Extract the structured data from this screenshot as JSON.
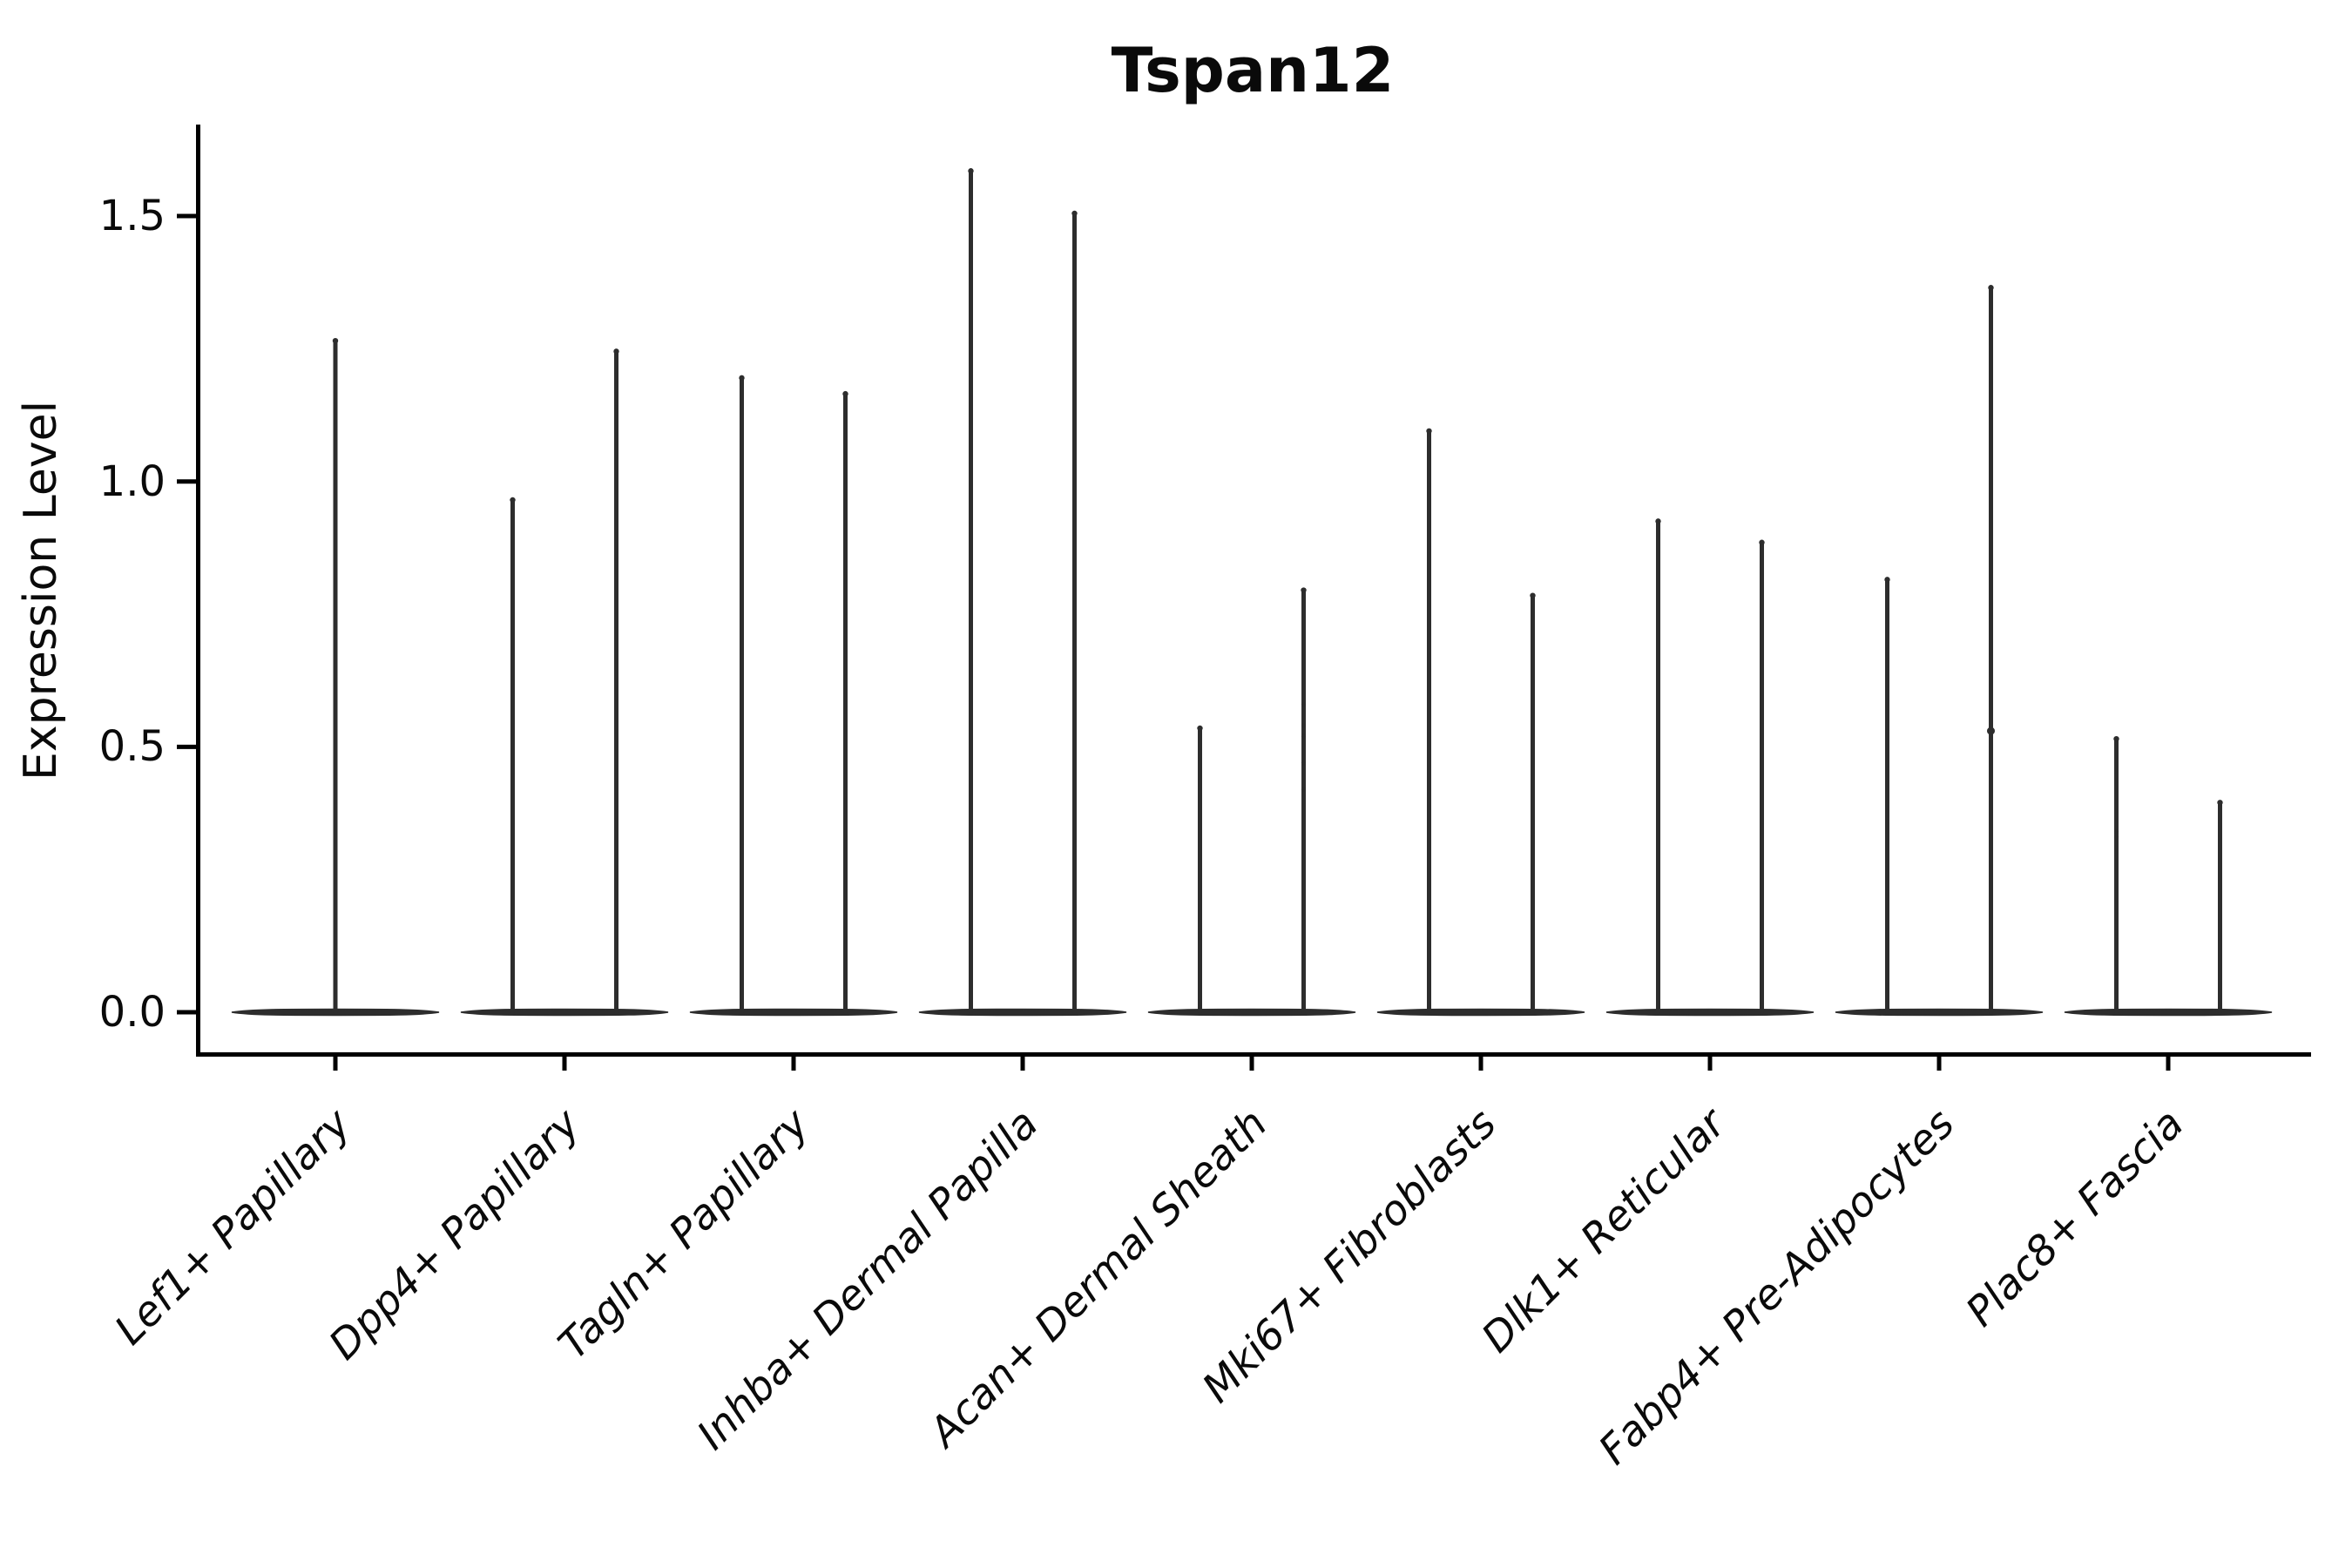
{
  "chart_data": {
    "type": "violin",
    "title": "Tspan12",
    "xlabel": "",
    "ylabel": "Expression Level",
    "ytick_labels": [
      "0.0",
      "0.5",
      "1.0",
      "1.5"
    ],
    "ytick_values": [
      0.0,
      0.5,
      1.0,
      1.5
    ],
    "ylim": [
      -0.08,
      1.67
    ],
    "grid": false,
    "legend": "none",
    "x_label_rotation_deg": 45,
    "x_label_style": "italic",
    "violin_color": "#2d2d2d",
    "axis_color": "#000000",
    "groups_per_category": 2,
    "categories": [
      "Lef1+ Papillary",
      "Dpp4+ Papillary",
      "Tagln+ Papillary",
      "Inhba+ Dermal Papilla",
      "Acan+ Dermal Sheath",
      "Mki67+ Fibroblasts",
      "Dlk1+ Reticular",
      "Fabp4+ Pre-Adipocytes",
      "Plac8+ Fascia"
    ],
    "violins": [
      {
        "category": "Lef1+ Papillary",
        "maxima": [
          1.27
        ]
      },
      {
        "category": "Dpp4+ Papillary",
        "maxima": [
          0.97,
          1.25
        ]
      },
      {
        "category": "Tagln+ Papillary",
        "maxima": [
          1.2,
          1.17
        ]
      },
      {
        "category": "Inhba+ Dermal Papilla",
        "maxima": [
          1.59,
          1.51
        ]
      },
      {
        "category": "Acan+ Dermal Sheath",
        "maxima": [
          0.54,
          0.8
        ],
        "points": [
          [],
          [
            0.58,
            0.54,
            0.52,
            0.47,
            0.42
          ]
        ]
      },
      {
        "category": "Mki67+ Fibroblasts",
        "maxima": [
          1.1,
          0.79
        ]
      },
      {
        "category": "Dlk1+ Reticular",
        "maxima": [
          0.93,
          0.89
        ]
      },
      {
        "category": "Fabp4+ Pre-Adipocytes",
        "maxima": [
          0.82,
          1.37
        ],
        "points": [
          [],
          [
            0.53
          ]
        ]
      },
      {
        "category": "Plac8+ Fascia",
        "maxima": [
          0.52,
          0.4
        ],
        "points": [
          [
            0.34,
            0.33
          ],
          []
        ]
      }
    ]
  }
}
